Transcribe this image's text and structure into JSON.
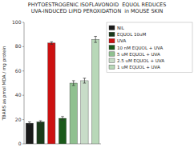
{
  "chart_data": {
    "type": "bar",
    "title": "PHYTOESTROGENIC ISOFLAVONOID  EQUOL REDUCES\nUVA-INDUCED LIPID PEROXIDATION  in MOUSE SKIN",
    "y_label": "TBARS as pmol MDA / mg protein",
    "categories": [
      "NIL",
      "EQUOL 10uM",
      "UVA",
      "10 nM EQUOL + UVA",
      "5 uM EQUOL + UVA",
      "2.5 uM EQUOL + UVA",
      "1 uM EQUOL + UVA"
    ],
    "values": [
      17,
      18,
      83,
      21,
      50,
      52,
      86
    ],
    "errors": [
      1.0,
      1.0,
      1.0,
      1.5,
      2.0,
      2.0,
      2.5
    ],
    "colors": [
      "#1a1a1a",
      "#1a3a1a",
      "#cc1111",
      "#1a5a1a",
      "#90c090",
      "#c8dcc8",
      "#b8d8b8"
    ],
    "ylim": [
      0,
      100
    ],
    "yticks": [
      0,
      20,
      40,
      60,
      80,
      100
    ],
    "tick_labels": "y",
    "legend": "right",
    "grid": false
  }
}
